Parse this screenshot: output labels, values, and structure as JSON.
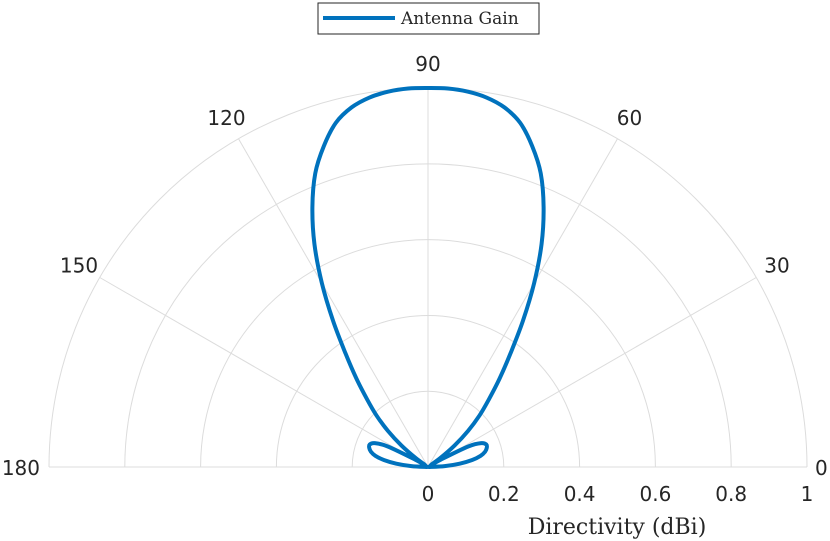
{
  "chart_data": {
    "type": "polar-line",
    "title": "",
    "rlabel": "Directivity (dBi)",
    "rlim": [
      0,
      1
    ],
    "r_ticks": [
      "0",
      "0.2",
      "0.4",
      "0.6",
      "0.8",
      "1"
    ],
    "theta_range": [
      0,
      180
    ],
    "theta_ticks": [
      "0",
      "30",
      "60",
      "90",
      "120",
      "150",
      "180"
    ],
    "grid": true,
    "legend": {
      "placement": "top-center",
      "entries": [
        "Antenna Gain"
      ]
    },
    "series": [
      {
        "name": "Antenna Gain",
        "color": "#0072bd",
        "theta_deg": [
          0,
          3,
          6,
          9,
          12,
          15,
          18,
          21,
          24,
          27,
          30,
          33,
          36,
          39,
          42,
          45,
          48,
          51,
          54,
          57,
          60,
          63,
          66,
          69,
          72,
          75,
          78,
          81,
          84,
          87,
          90,
          93,
          96,
          99,
          102,
          105,
          108,
          111,
          114,
          117,
          120,
          123,
          126,
          129,
          132,
          135,
          138,
          141,
          144,
          147,
          150,
          153,
          156,
          159,
          162,
          165,
          168,
          171,
          174,
          177,
          180
        ],
        "r": [
          0.0,
          0.044,
          0.084,
          0.118,
          0.142,
          0.156,
          0.163,
          0.165,
          0.155,
          0.12,
          0.04,
          0.008,
          0.04,
          0.09,
          0.142,
          0.192,
          0.24,
          0.3,
          0.37,
          0.46,
          0.56,
          0.66,
          0.75,
          0.83,
          0.89,
          0.94,
          0.97,
          0.987,
          0.996,
          1.0,
          1.0,
          1.0,
          0.996,
          0.987,
          0.97,
          0.94,
          0.89,
          0.83,
          0.75,
          0.66,
          0.56,
          0.46,
          0.37,
          0.3,
          0.24,
          0.192,
          0.142,
          0.09,
          0.04,
          0.008,
          0.04,
          0.12,
          0.155,
          0.165,
          0.163,
          0.156,
          0.142,
          0.118,
          0.084,
          0.044,
          0.0
        ]
      }
    ]
  }
}
